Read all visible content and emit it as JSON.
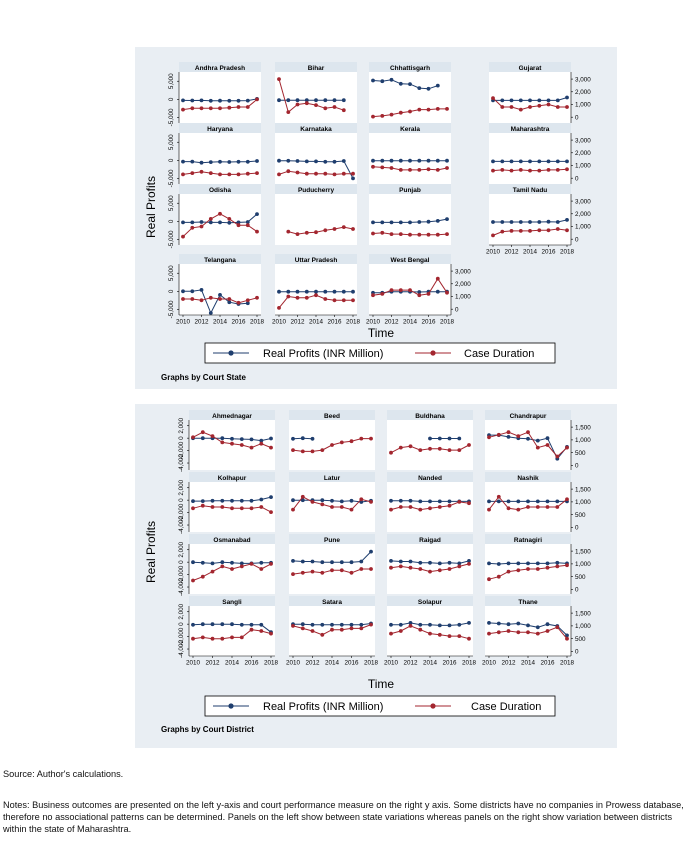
{
  "figures": [
    {
      "ylabel": "Real Profits",
      "xlabel": "Time",
      "legend": [
        "Real Profits (INR Million)",
        "Case Duration"
      ],
      "graphs_by": "Graphs by Court State",
      "x_ticks": [
        2010,
        2012,
        2014,
        2016,
        2018
      ],
      "left_ticks": [
        "-5,000",
        "0",
        "5,000"
      ],
      "right_ticks": [
        "0",
        "1,000",
        "2,000",
        "3,000"
      ]
    },
    {
      "ylabel": "Real Profits",
      "xlabel": "Time",
      "legend": [
        "Real Profits (INR Million)",
        "Case Duration"
      ],
      "graphs_by": "Graphs by Court District",
      "x_ticks": [
        2010,
        2012,
        2014,
        2016,
        2018
      ],
      "left_ticks": [
        "-4,000",
        "-2,000",
        "0",
        "2,000"
      ],
      "right_ticks": [
        "0",
        "500",
        "1,000",
        "1,500"
      ]
    }
  ],
  "colors": {
    "profit": "#1f3e6e",
    "duration": "#a3262f",
    "panel_bg": "#e9eef3",
    "header_bg": "#dde6ee",
    "outer_bg": "#e9eef3"
  },
  "chart_data": [
    {
      "type": "line",
      "title": "",
      "x": [
        2010,
        2011,
        2012,
        2013,
        2014,
        2015,
        2016,
        2017,
        2018
      ],
      "left_axis": {
        "ylim": [
          -6000,
          7000
        ]
      },
      "right_axis": {
        "ylim": [
          -300,
          3400
        ]
      },
      "panels": [
        {
          "name": "Andhra Pradesh",
          "profit": [
            -300,
            -320,
            -300,
            -400,
            -380,
            -420,
            -400,
            -350,
            100
          ],
          "duration": [
            600,
            700,
            700,
            700,
            700,
            750,
            800,
            800,
            1400
          ]
        },
        {
          "name": "Bihar",
          "profit": [
            -250,
            -250,
            -260,
            -250,
            -240,
            -260,
            -260,
            -250,
            null
          ],
          "duration": [
            3000,
            400,
            1000,
            1100,
            950,
            700,
            800,
            550,
            null
          ]
        },
        {
          "name": "Chhattisgarh",
          "profit": [
            5200,
            5000,
            5400,
            4300,
            4200,
            3100,
            2900,
            3800,
            null
          ],
          "duration": [
            50,
            100,
            200,
            350,
            450,
            600,
            600,
            650,
            650
          ]
        },
        {
          "name": "Gujarat",
          "profit": [
            -300,
            -300,
            -300,
            -300,
            -300,
            -300,
            -300,
            -300,
            500
          ],
          "duration": [
            1500,
            800,
            800,
            600,
            800,
            900,
            1000,
            800,
            800
          ]
        },
        {
          "name": "Haryana",
          "profit": [
            -350,
            -360,
            -650,
            -500,
            -420,
            -470,
            -420,
            -400,
            -200
          ],
          "duration": [
            300,
            400,
            500,
            400,
            300,
            300,
            300,
            350,
            400
          ]
        },
        {
          "name": "Karnataka",
          "profit": [
            -100,
            -150,
            -200,
            -300,
            -300,
            -400,
            -400,
            -200,
            -5000
          ],
          "duration": [
            300,
            550,
            450,
            350,
            350,
            350,
            300,
            350,
            350
          ]
        },
        {
          "name": "Kerala",
          "profit": [
            -100,
            -100,
            -100,
            -100,
            -100,
            -100,
            -100,
            -100,
            -100
          ],
          "duration": [
            900,
            850,
            800,
            650,
            650,
            650,
            700,
            650,
            800
          ]
        },
        {
          "name": "Maharashtra",
          "profit": [
            -300,
            -300,
            -300,
            -300,
            -300,
            -300,
            -300,
            -300,
            -300
          ],
          "duration": [
            600,
            650,
            600,
            650,
            600,
            600,
            650,
            650,
            700
          ]
        },
        {
          "name": "Odisha",
          "profit": [
            -300,
            -300,
            -200,
            -300,
            -300,
            -400,
            -300,
            -200,
            2000
          ],
          "duration": [
            200,
            900,
            1000,
            1600,
            2000,
            1600,
            1100,
            1100,
            600
          ]
        },
        {
          "name": "Puducherry",
          "profit": [
            null,
            null,
            null,
            null,
            null,
            null,
            null,
            null,
            null
          ],
          "duration": [
            null,
            600,
            400,
            500,
            550,
            700,
            800,
            950,
            800
          ]
        },
        {
          "name": "Punjab",
          "profit": [
            -300,
            -300,
            -300,
            -300,
            -300,
            -200,
            -100,
            100,
            600
          ],
          "duration": [
            450,
            500,
            400,
            400,
            350,
            350,
            350,
            350,
            400
          ]
        },
        {
          "name": "Tamil Nadu",
          "profit": [
            -200,
            -200,
            -200,
            -200,
            -200,
            -200,
            -100,
            -200,
            400
          ],
          "duration": [
            300,
            600,
            650,
            650,
            650,
            700,
            700,
            800,
            700
          ]
        },
        {
          "name": "Telangana",
          "profit": [
            0,
            0,
            400,
            -6000,
            -1000,
            -3000,
            -3500,
            -3300,
            null
          ],
          "duration": [
            800,
            800,
            700,
            900,
            800,
            800,
            500,
            700,
            900
          ]
        },
        {
          "name": "Uttar Pradesh",
          "profit": [
            -100,
            -100,
            -100,
            -100,
            -100,
            -100,
            -100,
            -100,
            -100
          ],
          "duration": [
            100,
            1000,
            900,
            900,
            1100,
            800,
            700,
            700,
            700
          ]
        },
        {
          "name": "West Bengal",
          "profit": [
            -400,
            -400,
            -100,
            -100,
            -100,
            -200,
            -100,
            -100,
            -100
          ],
          "duration": [
            1100,
            1200,
            1500,
            1500,
            1500,
            1100,
            1200,
            2400,
            1300
          ]
        }
      ]
    },
    {
      "type": "line",
      "title": "",
      "x": [
        2010,
        2011,
        2012,
        2013,
        2014,
        2015,
        2016,
        2017,
        2018
      ],
      "left_axis": {
        "ylim": [
          -4800,
          2600
        ]
      },
      "right_axis": {
        "ylim": [
          -100,
          1700
        ]
      },
      "panels": [
        {
          "name": "Ahmednagar",
          "profit": [
            0,
            0,
            0,
            0,
            -100,
            -150,
            -200,
            -400,
            -50
          ],
          "duration": [
            1100,
            1300,
            1150,
            900,
            850,
            800,
            700,
            850,
            700
          ]
        },
        {
          "name": "Beed",
          "profit": [
            -100,
            0,
            -100,
            null,
            null,
            null,
            null,
            null,
            null
          ],
          "duration": [
            600,
            550,
            550,
            600,
            800,
            900,
            950,
            1050,
            1050
          ]
        },
        {
          "name": "Buldhana",
          "profit": [
            null,
            null,
            null,
            null,
            -50,
            -50,
            -50,
            -50,
            null
          ],
          "duration": [
            500,
            700,
            750,
            600,
            650,
            650,
            600,
            600,
            800
          ]
        },
        {
          "name": "Chandrapur",
          "profit": [
            500,
            500,
            200,
            0,
            -100,
            -400,
            0,
            -3300,
            -1400
          ],
          "duration": [
            1100,
            1200,
            1300,
            1150,
            1300,
            700,
            800,
            350,
            700
          ]
        },
        {
          "name": "Kolhapur",
          "profit": [
            -150,
            -150,
            -100,
            -100,
            -100,
            -100,
            -100,
            100,
            500
          ],
          "duration": [
            750,
            850,
            800,
            800,
            750,
            750,
            750,
            800,
            600
          ]
        },
        {
          "name": "Latur",
          "profit": [
            0,
            0,
            0,
            0,
            -100,
            -200,
            -100,
            -300,
            -100
          ],
          "duration": [
            700,
            1200,
            1000,
            900,
            800,
            800,
            700,
            1100,
            1000
          ]
        },
        {
          "name": "Nanded",
          "profit": [
            -100,
            -100,
            -100,
            -200,
            -200,
            -200,
            -200,
            -200,
            -200
          ],
          "duration": [
            700,
            800,
            800,
            700,
            750,
            800,
            850,
            1000,
            950
          ]
        },
        {
          "name": "Nashik",
          "profit": [
            -200,
            -200,
            -200,
            -200,
            -200,
            -200,
            -200,
            -200,
            -200
          ],
          "duration": [
            700,
            1200,
            750,
            700,
            800,
            800,
            800,
            800,
            1100
          ]
        },
        {
          "name": "Osmanabad",
          "profit": [
            0,
            -100,
            -200,
            0,
            -100,
            -200,
            -200,
            -100,
            -100
          ],
          "duration": [
            350,
            500,
            700,
            900,
            800,
            900,
            1000,
            800,
            1000
          ]
        },
        {
          "name": "Pune",
          "profit": [
            200,
            100,
            100,
            0,
            0,
            0,
            0,
            100,
            1700
          ],
          "duration": [
            600,
            650,
            700,
            650,
            750,
            750,
            650,
            800,
            800
          ]
        },
        {
          "name": "Raigad",
          "profit": [
            200,
            100,
            100,
            -100,
            -100,
            -200,
            -100,
            -200,
            200
          ],
          "duration": [
            850,
            900,
            850,
            800,
            700,
            750,
            800,
            900,
            1000
          ]
        },
        {
          "name": "Ratnagiri",
          "profit": [
            -200,
            -300,
            -200,
            -200,
            -200,
            -200,
            -200,
            -100,
            -200
          ],
          "duration": [
            400,
            500,
            700,
            750,
            800,
            800,
            850,
            900,
            950
          ]
        },
        {
          "name": "Sangli",
          "profit": [
            -100,
            0,
            0,
            0,
            0,
            -100,
            -100,
            -100,
            -1300
          ],
          "duration": [
            500,
            550,
            500,
            500,
            550,
            550,
            850,
            800,
            700
          ]
        },
        {
          "name": "Satara",
          "profit": [
            0,
            0,
            -100,
            -100,
            -100,
            -100,
            -100,
            -100,
            100
          ],
          "duration": [
            1000,
            900,
            800,
            650,
            850,
            850,
            900,
            900,
            1050
          ]
        },
        {
          "name": "Solapur",
          "profit": [
            -100,
            -100,
            200,
            -100,
            -100,
            -200,
            -200,
            -100,
            200
          ],
          "duration": [
            700,
            800,
            1000,
            850,
            700,
            650,
            600,
            600,
            500
          ]
        },
        {
          "name": "Thane",
          "profit": [
            200,
            100,
            0,
            100,
            -200,
            -500,
            0,
            -300,
            -1800
          ],
          "duration": [
            700,
            750,
            800,
            750,
            750,
            700,
            800,
            950,
            500
          ]
        }
      ]
    }
  ],
  "source": "Source: Author's calculations.",
  "notes": "Notes:  Business outcomes are presented on the left y-axis and court performance measure on the right y axis. Some districts have no companies in Prowess database, therefore no associational patterns can be determined. Panels on the left show between state variations whereas panels on the right show variation between districts within the state of Maharashtra."
}
